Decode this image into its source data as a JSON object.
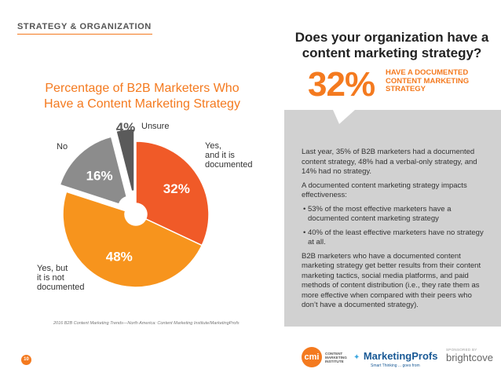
{
  "header": {
    "section": "STRATEGY & ORGANIZATION"
  },
  "page_number": "10",
  "chart_data": {
    "type": "pie",
    "title": "Percentage of B2B Marketers Who Have a Content Marketing Strategy",
    "title_lines": [
      "Percentage of B2B Marketers Who",
      "Have a Content Marketing Strategy"
    ],
    "slices": [
      {
        "label": "Yes, and it is documented",
        "label_lines": [
          "Yes,",
          "and it is",
          "documented"
        ],
        "value": 32,
        "display": "32%",
        "color": "#f05a28"
      },
      {
        "label": "Yes, but it is not documented",
        "label_lines": [
          "Yes, but",
          "it is not",
          "documented"
        ],
        "value": 48,
        "display": "48%",
        "color": "#f7941d"
      },
      {
        "label": "No",
        "label_lines": [
          "No"
        ],
        "value": 16,
        "display": "16%",
        "color": "#8c8c8c"
      },
      {
        "label": "Unsure",
        "label_lines": [
          "Unsure"
        ],
        "value": 4,
        "display": "4%",
        "color": "#5a5a5a"
      }
    ],
    "source": "2016 B2B Content Marketing Trends—North America: Content Marketing Institute/MarketingProfs"
  },
  "callout": {
    "question": "Does your organization have a content marketing strategy?",
    "value": "32%",
    "label": "HAVE A DOCUMENTED CONTENT MARKETING STRATEGY"
  },
  "body": {
    "p1": "Last year, 35% of B2B marketers had a documented content strategy, 48% had a verbal-only strategy, and 14% had no strategy.",
    "p2": "A documented content marketing strategy impacts effectiveness:",
    "bullets": [
      "• 53% of the most effective marketers have a documented content marketing strategy",
      "• 40% of the least effective marketers have no strategy at all."
    ],
    "p3": "B2B marketers who have a documented content marketing strategy get better results from their content marketing tactics, social media platforms, and paid methods of content distribution (i.e., they rate them as more effective when compared with their peers who don’t have a documented strategy)."
  },
  "footer": {
    "cmi_mark": "cmi",
    "cmi_text": [
      "CONTENT",
      "MARKETING",
      "INSTITUTE"
    ],
    "mp_name": "MarketingProfs",
    "mp_tagline": "Smart Thinking ... goes from",
    "bc_by": "SPONSORED BY",
    "bc_name": "brightcove"
  },
  "colors": {
    "accent": "#f47a1f",
    "panel": "#d1d1d1"
  }
}
